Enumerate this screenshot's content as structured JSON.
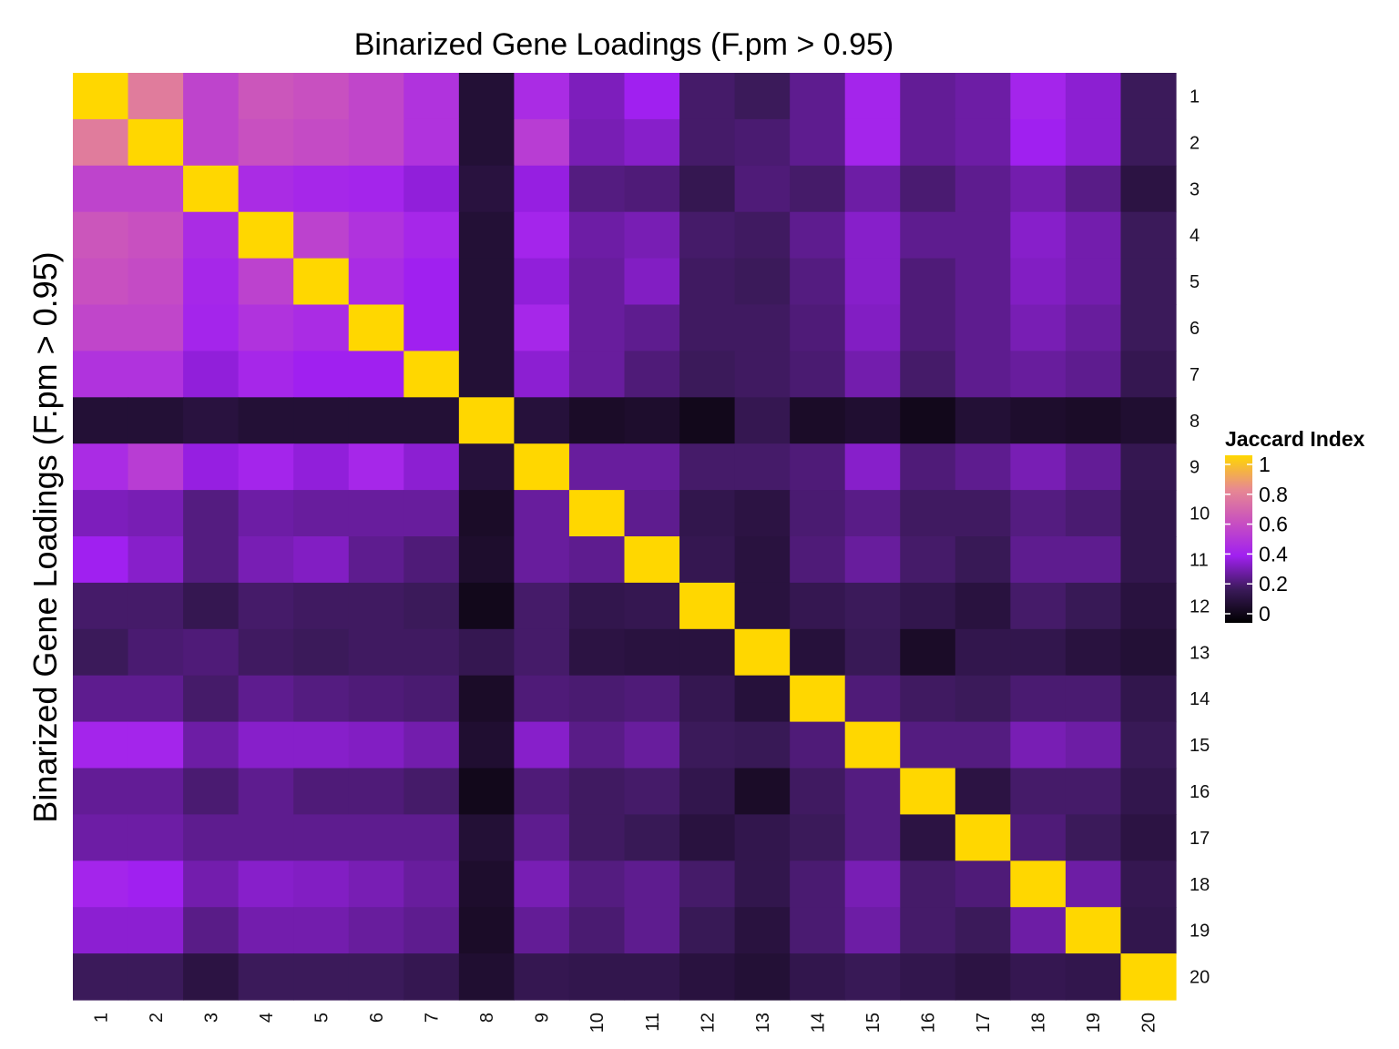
{
  "chart_data": {
    "type": "heatmap",
    "title": "Binarized Gene Loadings (F.pm > 0.95)",
    "xlabel": "",
    "ylabel": "Binarized Gene Loadings (F.pm > 0.95)",
    "x_categories": [
      "1",
      "2",
      "3",
      "4",
      "5",
      "6",
      "7",
      "8",
      "9",
      "10",
      "11",
      "12",
      "13",
      "14",
      "15",
      "16",
      "17",
      "18",
      "19",
      "20"
    ],
    "y_categories": [
      "1",
      "2",
      "3",
      "4",
      "5",
      "6",
      "7",
      "8",
      "9",
      "10",
      "11",
      "12",
      "13",
      "14",
      "15",
      "16",
      "17",
      "18",
      "19",
      "20"
    ],
    "values": [
      [
        1.0,
        0.75,
        0.55,
        0.62,
        0.6,
        0.56,
        0.48,
        0.12,
        0.45,
        0.33,
        0.4,
        0.22,
        0.2,
        0.27,
        0.42,
        0.28,
        0.3,
        0.42,
        0.36,
        0.2
      ],
      [
        0.75,
        1.0,
        0.55,
        0.6,
        0.58,
        0.56,
        0.48,
        0.12,
        0.52,
        0.32,
        0.35,
        0.22,
        0.23,
        0.27,
        0.42,
        0.28,
        0.3,
        0.4,
        0.36,
        0.2
      ],
      [
        0.55,
        0.55,
        1.0,
        0.45,
        0.43,
        0.42,
        0.37,
        0.14,
        0.38,
        0.25,
        0.24,
        0.18,
        0.24,
        0.22,
        0.3,
        0.23,
        0.27,
        0.31,
        0.26,
        0.15
      ],
      [
        0.62,
        0.6,
        0.45,
        1.0,
        0.54,
        0.48,
        0.43,
        0.12,
        0.42,
        0.3,
        0.32,
        0.22,
        0.21,
        0.27,
        0.35,
        0.27,
        0.27,
        0.35,
        0.31,
        0.2
      ],
      [
        0.6,
        0.58,
        0.43,
        0.54,
        1.0,
        0.45,
        0.4,
        0.12,
        0.37,
        0.29,
        0.34,
        0.21,
        0.2,
        0.25,
        0.35,
        0.24,
        0.27,
        0.34,
        0.31,
        0.2
      ],
      [
        0.56,
        0.56,
        0.42,
        0.48,
        0.45,
        1.0,
        0.4,
        0.12,
        0.43,
        0.29,
        0.27,
        0.21,
        0.21,
        0.24,
        0.34,
        0.24,
        0.27,
        0.32,
        0.29,
        0.2
      ],
      [
        0.48,
        0.48,
        0.37,
        0.43,
        0.4,
        0.4,
        1.0,
        0.12,
        0.36,
        0.29,
        0.24,
        0.2,
        0.21,
        0.23,
        0.31,
        0.22,
        0.27,
        0.29,
        0.27,
        0.18
      ],
      [
        0.12,
        0.12,
        0.14,
        0.12,
        0.12,
        0.12,
        0.12,
        1.0,
        0.13,
        0.09,
        0.1,
        0.06,
        0.18,
        0.09,
        0.11,
        0.06,
        0.12,
        0.1,
        0.09,
        0.11
      ],
      [
        0.45,
        0.52,
        0.38,
        0.42,
        0.37,
        0.43,
        0.36,
        0.13,
        1.0,
        0.29,
        0.29,
        0.22,
        0.22,
        0.24,
        0.35,
        0.24,
        0.27,
        0.32,
        0.28,
        0.18
      ],
      [
        0.33,
        0.32,
        0.25,
        0.3,
        0.29,
        0.29,
        0.29,
        0.09,
        0.29,
        1.0,
        0.27,
        0.17,
        0.15,
        0.23,
        0.26,
        0.21,
        0.21,
        0.25,
        0.23,
        0.17
      ],
      [
        0.4,
        0.35,
        0.25,
        0.32,
        0.34,
        0.27,
        0.24,
        0.1,
        0.29,
        0.27,
        1.0,
        0.18,
        0.14,
        0.24,
        0.29,
        0.22,
        0.19,
        0.27,
        0.27,
        0.17
      ],
      [
        0.22,
        0.22,
        0.18,
        0.22,
        0.21,
        0.21,
        0.2,
        0.06,
        0.22,
        0.17,
        0.18,
        1.0,
        0.14,
        0.18,
        0.2,
        0.17,
        0.14,
        0.22,
        0.19,
        0.14
      ],
      [
        0.2,
        0.23,
        0.24,
        0.21,
        0.2,
        0.21,
        0.21,
        0.18,
        0.22,
        0.15,
        0.14,
        0.14,
        1.0,
        0.13,
        0.19,
        0.09,
        0.17,
        0.17,
        0.14,
        0.12
      ],
      [
        0.27,
        0.27,
        0.22,
        0.27,
        0.25,
        0.24,
        0.23,
        0.09,
        0.24,
        0.23,
        0.24,
        0.18,
        0.13,
        1.0,
        0.24,
        0.21,
        0.2,
        0.23,
        0.23,
        0.17
      ],
      [
        0.42,
        0.42,
        0.3,
        0.35,
        0.35,
        0.34,
        0.31,
        0.11,
        0.35,
        0.26,
        0.29,
        0.2,
        0.19,
        0.24,
        1.0,
        0.25,
        0.25,
        0.32,
        0.3,
        0.19
      ],
      [
        0.28,
        0.28,
        0.23,
        0.27,
        0.24,
        0.24,
        0.22,
        0.06,
        0.24,
        0.21,
        0.22,
        0.17,
        0.09,
        0.21,
        0.25,
        1.0,
        0.15,
        0.22,
        0.22,
        0.17
      ],
      [
        0.3,
        0.3,
        0.27,
        0.27,
        0.27,
        0.27,
        0.27,
        0.12,
        0.27,
        0.21,
        0.19,
        0.14,
        0.17,
        0.2,
        0.25,
        0.15,
        1.0,
        0.24,
        0.2,
        0.15
      ],
      [
        0.42,
        0.4,
        0.31,
        0.35,
        0.34,
        0.32,
        0.29,
        0.1,
        0.32,
        0.25,
        0.27,
        0.22,
        0.17,
        0.23,
        0.32,
        0.22,
        0.24,
        1.0,
        0.3,
        0.18
      ],
      [
        0.36,
        0.36,
        0.26,
        0.31,
        0.31,
        0.29,
        0.27,
        0.09,
        0.28,
        0.23,
        0.27,
        0.19,
        0.14,
        0.23,
        0.3,
        0.22,
        0.2,
        0.3,
        1.0,
        0.17
      ],
      [
        0.2,
        0.2,
        0.15,
        0.2,
        0.2,
        0.2,
        0.18,
        0.11,
        0.18,
        0.17,
        0.17,
        0.14,
        0.12,
        0.17,
        0.19,
        0.17,
        0.15,
        0.18,
        0.17,
        1.0
      ]
    ],
    "color_scale": {
      "stops": [
        {
          "value": 0.0,
          "color": "#000000"
        },
        {
          "value": 0.2,
          "color": "#3b1a5a"
        },
        {
          "value": 0.4,
          "color": "#a020f0"
        },
        {
          "value": 0.6,
          "color": "#c850c0"
        },
        {
          "value": 0.8,
          "color": "#e88a90"
        },
        {
          "value": 1.0,
          "color": "#ffd700"
        }
      ]
    },
    "legend": {
      "title": "Jaccard Index",
      "ticks": [
        1,
        0.8,
        0.6,
        0.4,
        0.2,
        0
      ],
      "tick_labels": [
        "1",
        "0.8",
        "0.6",
        "0.4",
        "0.2",
        "0"
      ],
      "placement": "right"
    },
    "zlim": [
      0,
      1
    ],
    "grid": false
  }
}
